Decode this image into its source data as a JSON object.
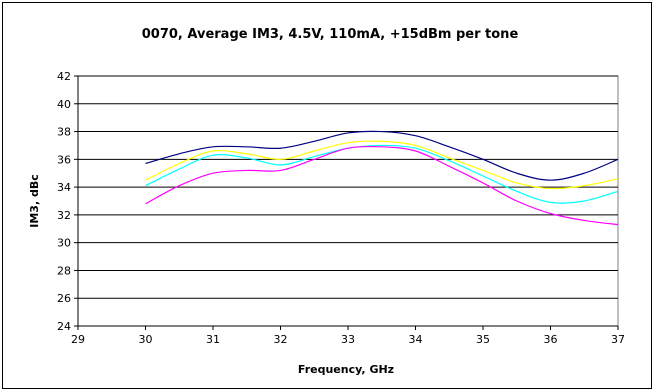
{
  "chart_data": {
    "type": "line",
    "title": "0070, Average IM3, 4.5V, 110mA, +15dBm per tone",
    "xlabel": "Frequency, GHz",
    "ylabel": "IM3, dBc",
    "xlim": [
      29,
      37
    ],
    "ylim": [
      24,
      42
    ],
    "x_ticks": [
      "29",
      "30",
      "31",
      "32",
      "33",
      "34",
      "35",
      "36",
      "37"
    ],
    "y_ticks": [
      "24",
      "26",
      "28",
      "30",
      "32",
      "34",
      "36",
      "38",
      "40",
      "42"
    ],
    "grid": "horizontal",
    "legend": "none",
    "series": [
      {
        "color": "#000080",
        "points": [
          [
            30,
            35.7
          ],
          [
            30.5,
            36.4
          ],
          [
            31,
            36.9
          ],
          [
            31.5,
            36.9
          ],
          [
            32,
            36.8
          ],
          [
            32.5,
            37.3
          ],
          [
            33,
            37.9
          ],
          [
            33.5,
            38.0
          ],
          [
            34,
            37.7
          ],
          [
            34.5,
            36.9
          ],
          [
            35,
            36.0
          ],
          [
            35.5,
            35.0
          ],
          [
            36,
            34.5
          ],
          [
            36.5,
            35.0
          ],
          [
            37,
            36.0
          ]
        ]
      },
      {
        "color": "#ffff00",
        "points": [
          [
            30,
            34.5
          ],
          [
            30.5,
            35.7
          ],
          [
            31,
            36.6
          ],
          [
            31.5,
            36.4
          ],
          [
            32,
            36.0
          ],
          [
            32.5,
            36.6
          ],
          [
            33,
            37.2
          ],
          [
            33.5,
            37.3
          ],
          [
            34,
            37.0
          ],
          [
            34.5,
            36.1
          ],
          [
            35,
            35.2
          ],
          [
            35.5,
            34.3
          ],
          [
            36,
            33.9
          ],
          [
            36.5,
            34.1
          ],
          [
            37,
            34.6
          ]
        ]
      },
      {
        "color": "#00ffff",
        "points": [
          [
            30,
            34.1
          ],
          [
            30.5,
            35.3
          ],
          [
            31,
            36.3
          ],
          [
            31.5,
            36.1
          ],
          [
            32,
            35.6
          ],
          [
            32.5,
            36.2
          ],
          [
            33,
            36.8
          ],
          [
            33.5,
            37.0
          ],
          [
            34,
            36.8
          ],
          [
            34.5,
            35.9
          ],
          [
            35,
            34.8
          ],
          [
            35.5,
            33.7
          ],
          [
            36,
            32.9
          ],
          [
            36.5,
            33.0
          ],
          [
            37,
            33.7
          ]
        ]
      },
      {
        "color": "#ff00ff",
        "points": [
          [
            30,
            32.8
          ],
          [
            30.5,
            34.1
          ],
          [
            31,
            35.0
          ],
          [
            31.5,
            35.2
          ],
          [
            32,
            35.2
          ],
          [
            32.5,
            36.0
          ],
          [
            33,
            36.8
          ],
          [
            33.5,
            36.9
          ],
          [
            34,
            36.6
          ],
          [
            34.5,
            35.5
          ],
          [
            35,
            34.3
          ],
          [
            35.5,
            33.0
          ],
          [
            36,
            32.1
          ],
          [
            36.5,
            31.6
          ],
          [
            37,
            31.3
          ]
        ]
      }
    ]
  }
}
